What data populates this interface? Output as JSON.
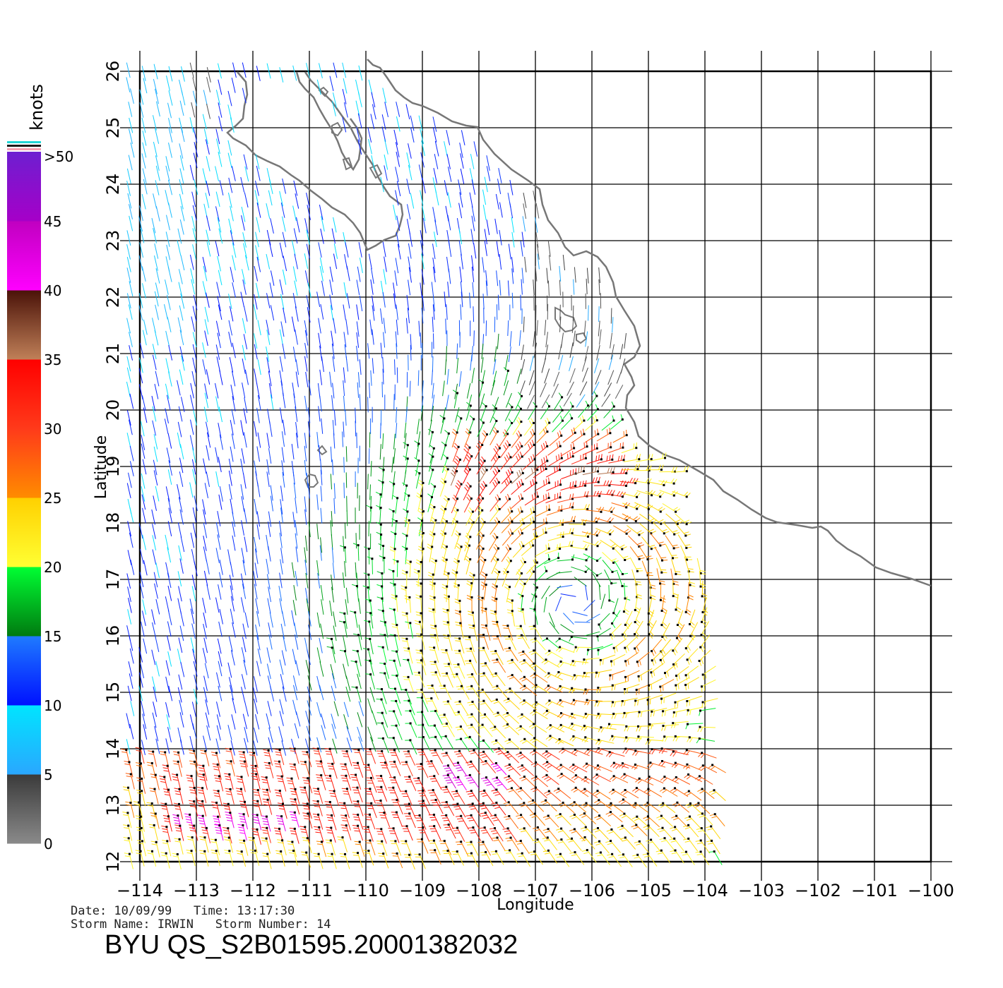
{
  "map": {
    "xlabel": "Longitude",
    "ylabel": "Latitude",
    "lon_ticks": [
      "-114",
      "-113",
      "-112",
      "-111",
      "-110",
      "-109",
      "-108",
      "-107",
      "-106",
      "-105",
      "-104",
      "-103",
      "-102",
      "-101",
      "-100"
    ],
    "lat_ticks": [
      "12",
      "13",
      "14",
      "15",
      "16",
      "17",
      "18",
      "19",
      "20",
      "21",
      "22",
      "23",
      "24",
      "25",
      "26"
    ],
    "lon_range": [
      -114,
      -100
    ],
    "lat_range": [
      12,
      26
    ],
    "grid": true,
    "land_outline_color": "#777777",
    "storm_center_approx": {
      "lon": -106.3,
      "lat": 16.6
    }
  },
  "legend": {
    "title": "knots",
    "bins": [
      {
        "label": "0",
        "from": 0,
        "to": 5,
        "color_top": "#3a3a3a",
        "color_bottom": "#8a8a8a"
      },
      {
        "label": "5",
        "from": 5,
        "to": 10,
        "color_top": "#00e5ff",
        "color_bottom": "#2aa7ff"
      },
      {
        "label": "10",
        "from": 10,
        "to": 15,
        "color_top": "#1f7bff",
        "color_bottom": "#0011ff"
      },
      {
        "label": "15",
        "from": 15,
        "to": 20,
        "color_top": "#00ff33",
        "color_bottom": "#007a10"
      },
      {
        "label": "20",
        "from": 20,
        "to": 25,
        "color_top": "#ffd000",
        "color_bottom": "#ffff33"
      },
      {
        "label": "25",
        "from": 25,
        "to": 30,
        "color_top": "#ff3a1a",
        "color_bottom": "#ff8c00"
      },
      {
        "label": "30",
        "from": 30,
        "to": 35,
        "color_top": "#ff0000",
        "color_bottom": "#ff3a1a"
      },
      {
        "label": "35",
        "from": 35,
        "to": 40,
        "color_top": "#4a1208",
        "color_bottom": "#c08058"
      },
      {
        "label": "40",
        "from": 40,
        "to": 45,
        "color_top": "#c000c0",
        "color_bottom": "#ff00ff"
      },
      {
        "label": "45",
        "from": 45,
        "to": 50,
        "color_top": "#6d1fd0",
        "color_bottom": "#a600c8"
      }
    ],
    "top_label": ">50"
  },
  "info": {
    "date_line": "Date: 10/09/99   Time: 13:17:30",
    "storm_line": "Storm Name: IRWIN   Storm Number: 14",
    "product_id": "BYU QS_S2B01595.20001382032"
  }
}
